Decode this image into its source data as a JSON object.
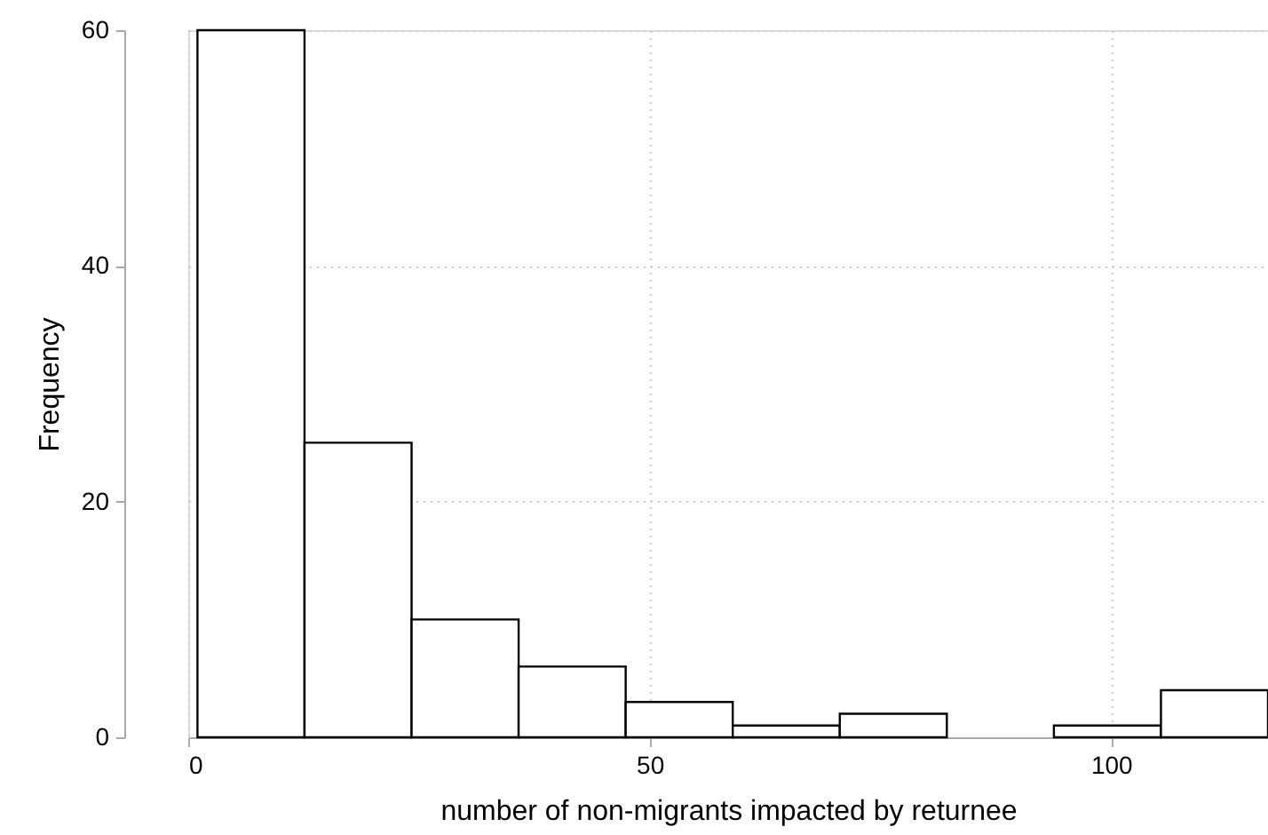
{
  "chart_data": {
    "type": "histogram",
    "xlabel": "number of non-migrants impacted by returnee",
    "ylabel": "Frequency",
    "bins": [
      1,
      12.6,
      24.2,
      35.8,
      47.4,
      59,
      70.6,
      82.2,
      93.8,
      105.4,
      117
    ],
    "values": [
      60,
      25,
      10,
      6,
      3,
      1,
      2,
      0,
      1,
      4
    ],
    "color": "#ffffff",
    "xlim": [
      0,
      117
    ],
    "xticks": [
      0,
      50,
      100
    ],
    "ylim": [
      0,
      60
    ],
    "yticks": [
      0,
      20,
      40,
      60
    ],
    "grid": true
  }
}
